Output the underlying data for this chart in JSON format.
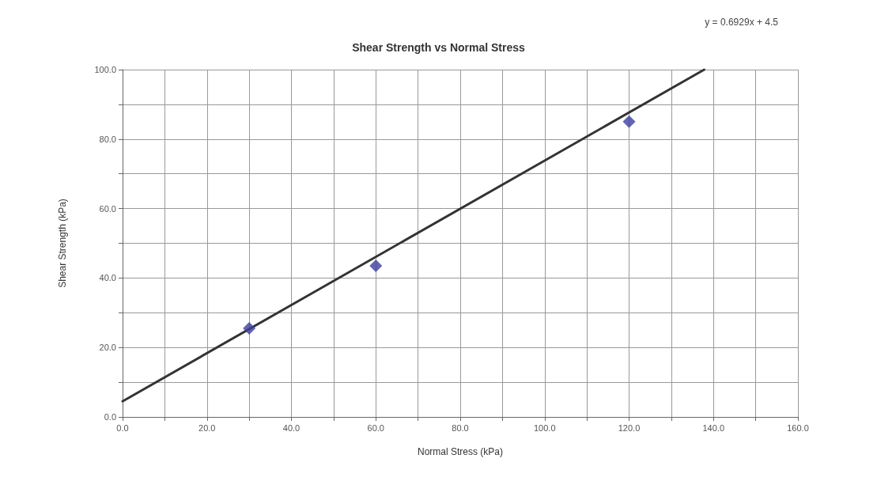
{
  "chart_data": {
    "type": "scatter",
    "title": "Shear Strength vs Normal Stress",
    "xlabel": "Normal Stress (kPa)",
    "ylabel": "Shear Strength (kPa)",
    "annotations": [
      "y = 0.6929x + 4.5"
    ],
    "series": [
      {
        "color": "#3b3f9c",
        "x": [
          30,
          60,
          120
        ],
        "values": [
          25.5,
          43.5,
          85
        ],
        "marker": "diamond"
      },
      {
        "type": "line",
        "color": "#333333",
        "x": [
          0,
          137.8
        ],
        "values": [
          4.5,
          100
        ],
        "marker": "none",
        "line_style": "solid"
      }
    ],
    "xlim": [
      0,
      160
    ],
    "ylim": [
      0,
      100
    ],
    "xticks": [
      {
        "value": 0,
        "label": "0.0"
      },
      {
        "value": 10,
        "label": null
      },
      {
        "value": 20,
        "label": "20.0"
      },
      {
        "value": 30,
        "label": null
      },
      {
        "value": 40,
        "label": "40.0"
      },
      {
        "value": 50,
        "label": null
      },
      {
        "value": 60,
        "label": "60.0"
      },
      {
        "value": 70,
        "label": null
      },
      {
        "value": 80,
        "label": "80.0"
      },
      {
        "value": 90,
        "label": null
      },
      {
        "value": 100,
        "label": "100.0"
      },
      {
        "value": 110,
        "label": null
      },
      {
        "value": 120,
        "label": "120.0"
      },
      {
        "value": 130,
        "label": null
      },
      {
        "value": 140,
        "label": "140.0"
      },
      {
        "value": 150,
        "label": null
      },
      {
        "value": 160,
        "label": "160.0"
      }
    ],
    "yticks": [
      {
        "value": 0,
        "label": "0.0"
      },
      {
        "value": 10,
        "label": null
      },
      {
        "value": 20,
        "label": "20.0"
      },
      {
        "value": 30,
        "label": null
      },
      {
        "value": 40,
        "label": "40.0"
      },
      {
        "value": 50,
        "label": null
      },
      {
        "value": 60,
        "label": "60.0"
      },
      {
        "value": 70,
        "label": null
      },
      {
        "value": 80,
        "label": "80.0"
      },
      {
        "value": 90,
        "label": null
      },
      {
        "value": 100,
        "label": "100.0"
      }
    ],
    "grid": true
  }
}
